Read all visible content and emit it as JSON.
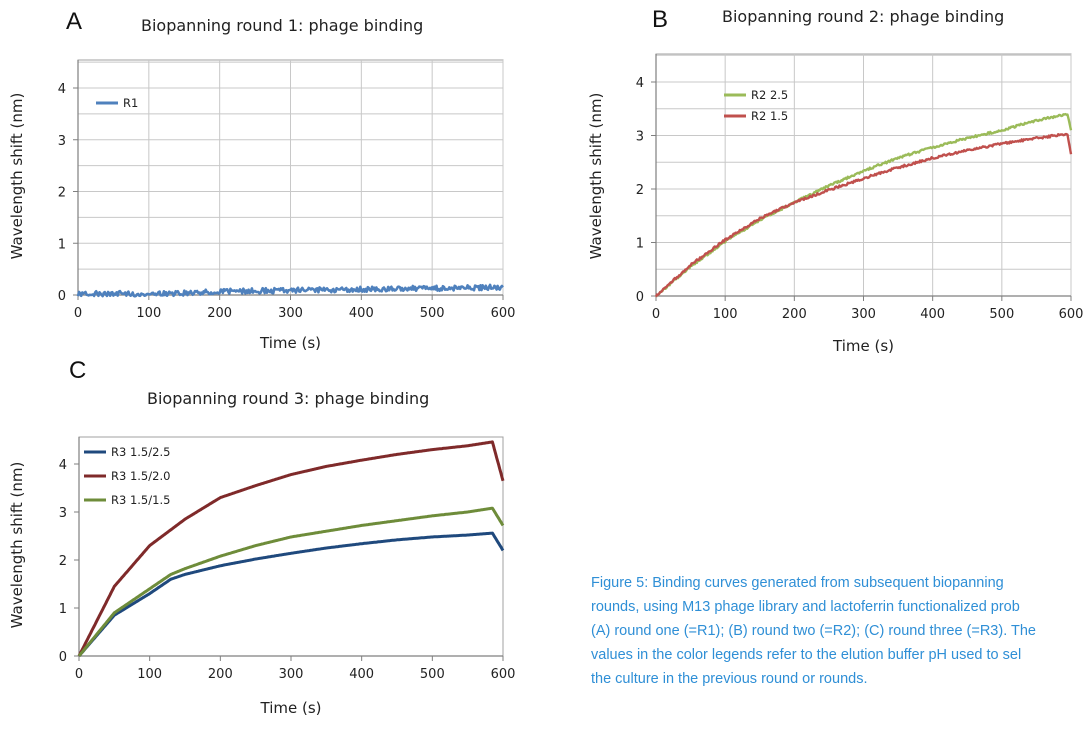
{
  "panels": [
    {
      "letter": "A",
      "title": "Biopanning round 1: phage binding"
    },
    {
      "letter": "B",
      "title": "Biopanning round 2: phage binding"
    },
    {
      "letter": "C",
      "title": "Biopanning round 3: phage binding"
    }
  ],
  "caption": "Figure 5: Binding curves generated from subsequent biopanning\nrounds, using M13 phage library and lactoferrin functionalized prob\n(A) round one (=R1); (B) round two (=R2); (C) round three (=R3). The\nvalues in the color legends refer to the elution buffer pH used to sel\nthe culture in the previous round or rounds.",
  "chart_data": [
    {
      "type": "line",
      "title": "Biopanning round 1: phage binding",
      "xlabel": "Time (s)",
      "ylabel": "Wavelength shift (nm)",
      "xlim": [
        0,
        600
      ],
      "ylim": [
        0,
        4.5
      ],
      "x_ticks": [
        0,
        100,
        200,
        300,
        400,
        500,
        600
      ],
      "y_ticks": [
        0,
        1,
        2,
        3,
        4
      ],
      "grid": true,
      "legend": "top-left",
      "noise": 0.05,
      "series": [
        {
          "name": "R1",
          "color": "#4f81bd",
          "x": [
            0,
            50,
            100,
            150,
            200,
            250,
            300,
            350,
            400,
            450,
            500,
            550,
            600
          ],
          "y": [
            0.02,
            0.03,
            0.02,
            0.04,
            0.07,
            0.08,
            0.09,
            0.1,
            0.11,
            0.12,
            0.13,
            0.14,
            0.15
          ]
        }
      ]
    },
    {
      "type": "line",
      "title": "Biopanning round 2: phage binding",
      "xlabel": "Time (s)",
      "ylabel": "Wavelength shift (nm)",
      "xlim": [
        0,
        600
      ],
      "ylim": [
        0,
        4.5
      ],
      "x_ticks": [
        0,
        100,
        200,
        300,
        400,
        500,
        600
      ],
      "y_ticks": [
        0,
        1,
        2,
        3,
        4
      ],
      "grid": true,
      "legend": "top-left",
      "noise": 0.02,
      "series": [
        {
          "name": "R2 2.5",
          "color": "#9bbb59",
          "x": [
            0,
            50,
            100,
            150,
            200,
            250,
            300,
            350,
            400,
            450,
            500,
            550,
            595,
            600
          ],
          "y": [
            0,
            0.55,
            1.02,
            1.42,
            1.75,
            2.06,
            2.34,
            2.58,
            2.78,
            2.95,
            3.1,
            3.28,
            3.4,
            3.1
          ]
        },
        {
          "name": "R2 1.5",
          "color": "#c0504d",
          "x": [
            0,
            50,
            100,
            150,
            200,
            250,
            300,
            350,
            400,
            450,
            500,
            550,
            595,
            600
          ],
          "y": [
            0,
            0.58,
            1.05,
            1.45,
            1.75,
            1.98,
            2.2,
            2.4,
            2.58,
            2.72,
            2.85,
            2.95,
            3.03,
            2.65
          ]
        }
      ]
    },
    {
      "type": "line",
      "title": "Biopanning round 3: phage binding",
      "xlabel": "Time (s)",
      "ylabel": "Wavelength shift (nm)",
      "xlim": [
        0,
        600
      ],
      "ylim": [
        0,
        4.5
      ],
      "x_ticks": [
        0,
        100,
        200,
        300,
        400,
        500,
        600
      ],
      "y_ticks": [
        0,
        1,
        2,
        3,
        4
      ],
      "grid": true,
      "legend": "top-left",
      "noise": 0.0,
      "series": [
        {
          "name": "R3 1.5/2.5",
          "color": "#1f497d",
          "x": [
            0,
            50,
            100,
            130,
            150,
            200,
            250,
            300,
            350,
            400,
            450,
            500,
            550,
            585,
            600
          ],
          "y": [
            0,
            0.85,
            1.3,
            1.6,
            1.7,
            1.88,
            2.02,
            2.14,
            2.25,
            2.34,
            2.42,
            2.48,
            2.52,
            2.56,
            2.2
          ]
        },
        {
          "name": "R3 1.5/2.0",
          "color": "#7f2a2a",
          "x": [
            0,
            50,
            100,
            150,
            200,
            250,
            300,
            350,
            400,
            450,
            500,
            550,
            585,
            600
          ],
          "y": [
            0,
            1.45,
            2.3,
            2.85,
            3.3,
            3.55,
            3.78,
            3.95,
            4.08,
            4.2,
            4.3,
            4.38,
            4.46,
            3.65
          ]
        },
        {
          "name": "R3 1.5/1.5",
          "color": "#6e8c3a",
          "x": [
            0,
            50,
            100,
            130,
            150,
            200,
            250,
            300,
            350,
            400,
            450,
            500,
            550,
            585,
            600
          ],
          "y": [
            0,
            0.9,
            1.4,
            1.7,
            1.82,
            2.08,
            2.3,
            2.48,
            2.6,
            2.72,
            2.82,
            2.92,
            3.0,
            3.08,
            2.72
          ]
        }
      ]
    }
  ]
}
